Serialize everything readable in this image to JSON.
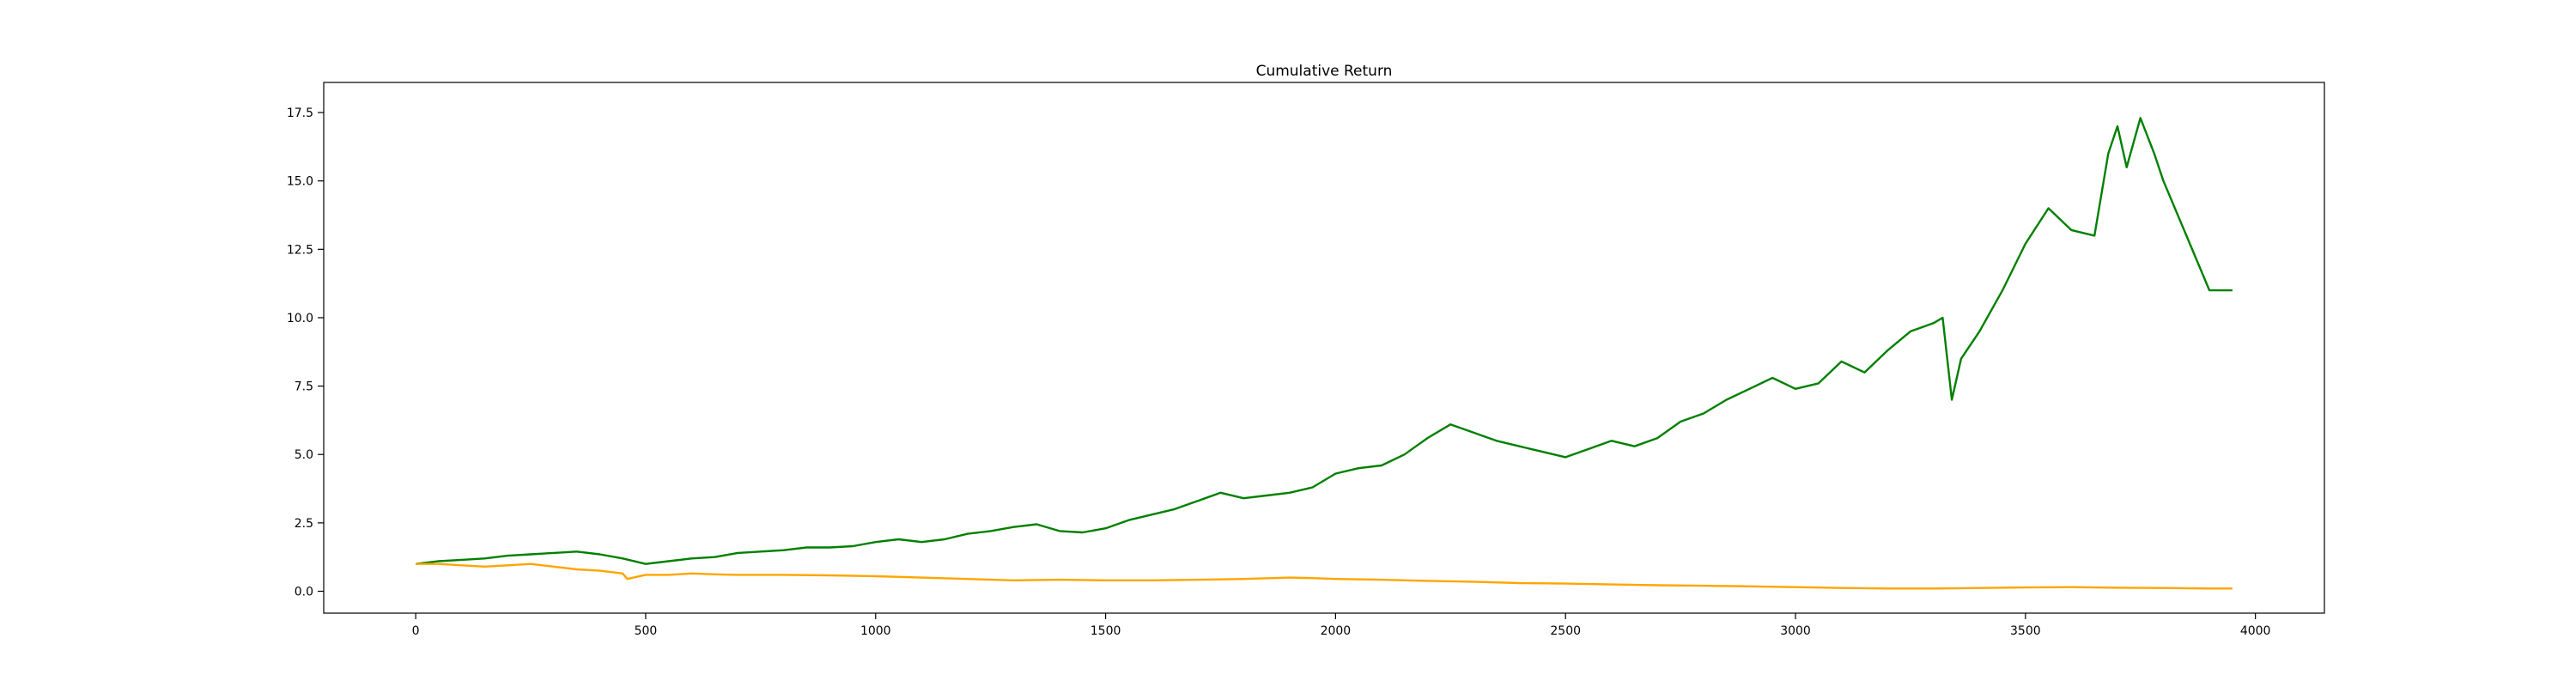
{
  "chart_data": {
    "type": "line",
    "title": "Cumulative Return",
    "xlabel": "",
    "ylabel": "",
    "xlim": [
      -200,
      4150
    ],
    "ylim": [
      -0.8,
      18.6
    ],
    "xticks": [
      0,
      500,
      1000,
      1500,
      2000,
      2500,
      3000,
      3500,
      4000
    ],
    "xtick_labels": [
      "0",
      "500",
      "1000",
      "1500",
      "2000",
      "2500",
      "3000",
      "3500",
      "4000"
    ],
    "yticks": [
      0.0,
      2.5,
      5.0,
      7.5,
      10.0,
      12.5,
      15.0,
      17.5
    ],
    "ytick_labels": [
      "0.0",
      "2.5",
      "5.0",
      "7.5",
      "10.0",
      "12.5",
      "15.0",
      "17.5"
    ],
    "grid": false,
    "series": [
      {
        "color": "#008000",
        "x": [
          0,
          50,
          100,
          150,
          200,
          250,
          300,
          350,
          400,
          450,
          500,
          550,
          600,
          650,
          700,
          750,
          800,
          850,
          900,
          950,
          1000,
          1050,
          1100,
          1150,
          1200,
          1250,
          1300,
          1350,
          1400,
          1450,
          1500,
          1550,
          1600,
          1650,
          1700,
          1750,
          1800,
          1850,
          1900,
          1950,
          2000,
          2050,
          2100,
          2150,
          2200,
          2250,
          2300,
          2350,
          2400,
          2450,
          2500,
          2550,
          2600,
          2650,
          2700,
          2750,
          2800,
          2850,
          2900,
          2950,
          3000,
          3050,
          3100,
          3150,
          3200,
          3250,
          3300,
          3320,
          3340,
          3360,
          3400,
          3450,
          3500,
          3550,
          3600,
          3650,
          3680,
          3700,
          3720,
          3750,
          3780,
          3800,
          3850,
          3900,
          3950
        ],
        "y": [
          1.0,
          1.1,
          1.15,
          1.2,
          1.3,
          1.35,
          1.4,
          1.45,
          1.35,
          1.2,
          1.0,
          1.1,
          1.2,
          1.25,
          1.4,
          1.45,
          1.5,
          1.6,
          1.6,
          1.65,
          1.8,
          1.9,
          1.8,
          1.9,
          2.1,
          2.2,
          2.35,
          2.45,
          2.2,
          2.15,
          2.3,
          2.6,
          2.8,
          3.0,
          3.3,
          3.6,
          3.4,
          3.5,
          3.6,
          3.8,
          4.3,
          4.5,
          4.6,
          5.0,
          5.6,
          6.1,
          5.8,
          5.5,
          5.3,
          5.1,
          4.9,
          5.2,
          5.5,
          5.3,
          5.6,
          6.2,
          6.5,
          7.0,
          7.4,
          7.8,
          7.4,
          7.6,
          8.4,
          8.0,
          8.8,
          9.5,
          9.8,
          10.0,
          7.0,
          8.5,
          9.5,
          11.0,
          12.7,
          14.0,
          13.2,
          13.0,
          16.0,
          17.0,
          15.5,
          17.3,
          16.0,
          15.0,
          13.0,
          11.0,
          11.0
        ]
      },
      {
        "color": "#ffa500",
        "x": [
          0,
          50,
          100,
          150,
          200,
          250,
          300,
          350,
          400,
          450,
          460,
          500,
          550,
          600,
          650,
          700,
          800,
          900,
          1000,
          1100,
          1200,
          1300,
          1400,
          1500,
          1600,
          1700,
          1800,
          1900,
          1950,
          2000,
          2100,
          2200,
          2300,
          2400,
          2500,
          2600,
          2700,
          2800,
          2900,
          3000,
          3100,
          3200,
          3300,
          3400,
          3500,
          3600,
          3700,
          3800,
          3900,
          3950
        ],
        "y": [
          1.0,
          1.0,
          0.95,
          0.9,
          0.95,
          1.0,
          0.9,
          0.8,
          0.75,
          0.65,
          0.45,
          0.6,
          0.6,
          0.65,
          0.62,
          0.6,
          0.6,
          0.58,
          0.55,
          0.5,
          0.45,
          0.4,
          0.42,
          0.4,
          0.4,
          0.42,
          0.45,
          0.5,
          0.48,
          0.45,
          0.42,
          0.38,
          0.35,
          0.3,
          0.28,
          0.25,
          0.22,
          0.2,
          0.18,
          0.15,
          0.12,
          0.1,
          0.1,
          0.12,
          0.14,
          0.15,
          0.13,
          0.12,
          0.1,
          0.1
        ]
      }
    ]
  }
}
